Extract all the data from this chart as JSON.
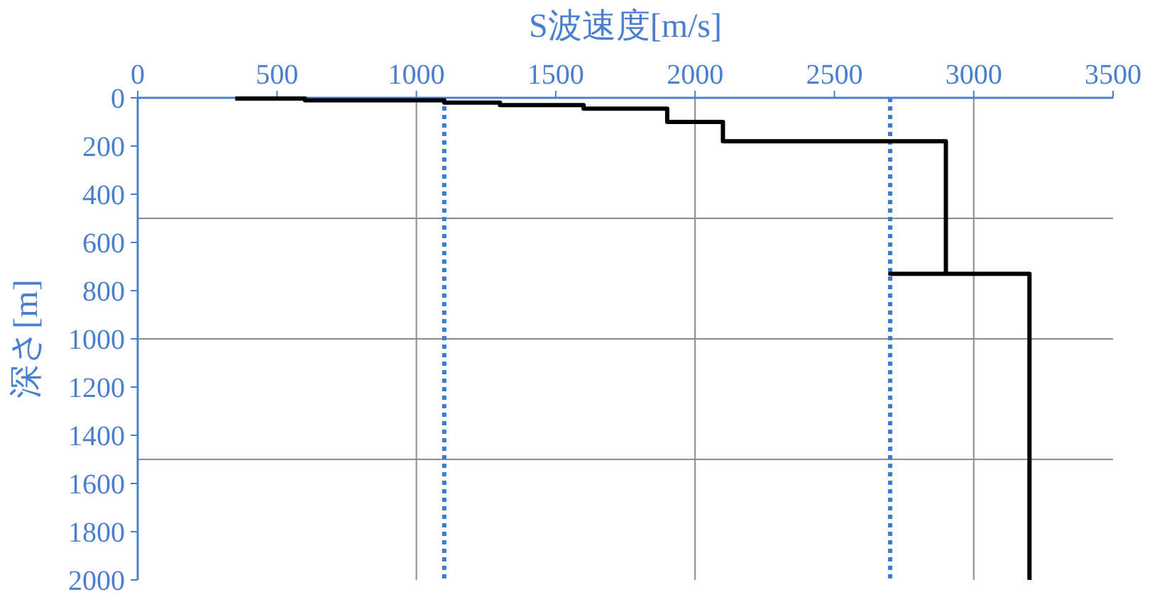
{
  "chart_data": {
    "type": "line",
    "xlabel": "S波速度[m/s]",
    "ylabel": "深さ[m]",
    "xlim": [
      0,
      3500
    ],
    "xticks": [
      0,
      500,
      1000,
      1500,
      2000,
      2500,
      3000,
      3500
    ],
    "ylim": [
      2000,
      0
    ],
    "yticks": [
      0,
      200,
      400,
      600,
      800,
      1000,
      1200,
      1400,
      1600,
      1800,
      2000
    ],
    "grid": false,
    "marker": "none",
    "line_style": "solid",
    "series": [
      {
        "color": "#000000",
        "x": [
          350,
          600,
          600,
          1100,
          1100,
          1300,
          1300,
          1600,
          1600,
          1900,
          1900,
          2100,
          2100,
          2900,
          2900,
          2700,
          3200,
          3200
        ],
        "values": [
          3,
          3,
          10,
          10,
          20,
          20,
          30,
          30,
          45,
          45,
          100,
          100,
          180,
          180,
          730,
          730,
          730,
          2000
        ]
      }
    ],
    "ref_lines": [
      {
        "axis": "x",
        "value": 1000,
        "color": "#8c8c8c",
        "line_style": "solid"
      },
      {
        "axis": "x",
        "value": 2000,
        "color": "#8c8c8c",
        "line_style": "solid"
      },
      {
        "axis": "x",
        "value": 3000,
        "color": "#8c8c8c",
        "line_style": "solid"
      },
      {
        "axis": "y",
        "value": 500,
        "color": "#8c8c8c",
        "line_style": "solid"
      },
      {
        "axis": "y",
        "value": 1000,
        "color": "#8c8c8c",
        "line_style": "solid"
      },
      {
        "axis": "y",
        "value": 1500,
        "color": "#8c8c8c",
        "line_style": "solid"
      },
      {
        "axis": "x",
        "value": 1100,
        "color": "#3a7bd5",
        "line_style": "dotted"
      },
      {
        "axis": "x",
        "value": 2700,
        "color": "#3a7bd5",
        "line_style": "dotted"
      }
    ]
  }
}
